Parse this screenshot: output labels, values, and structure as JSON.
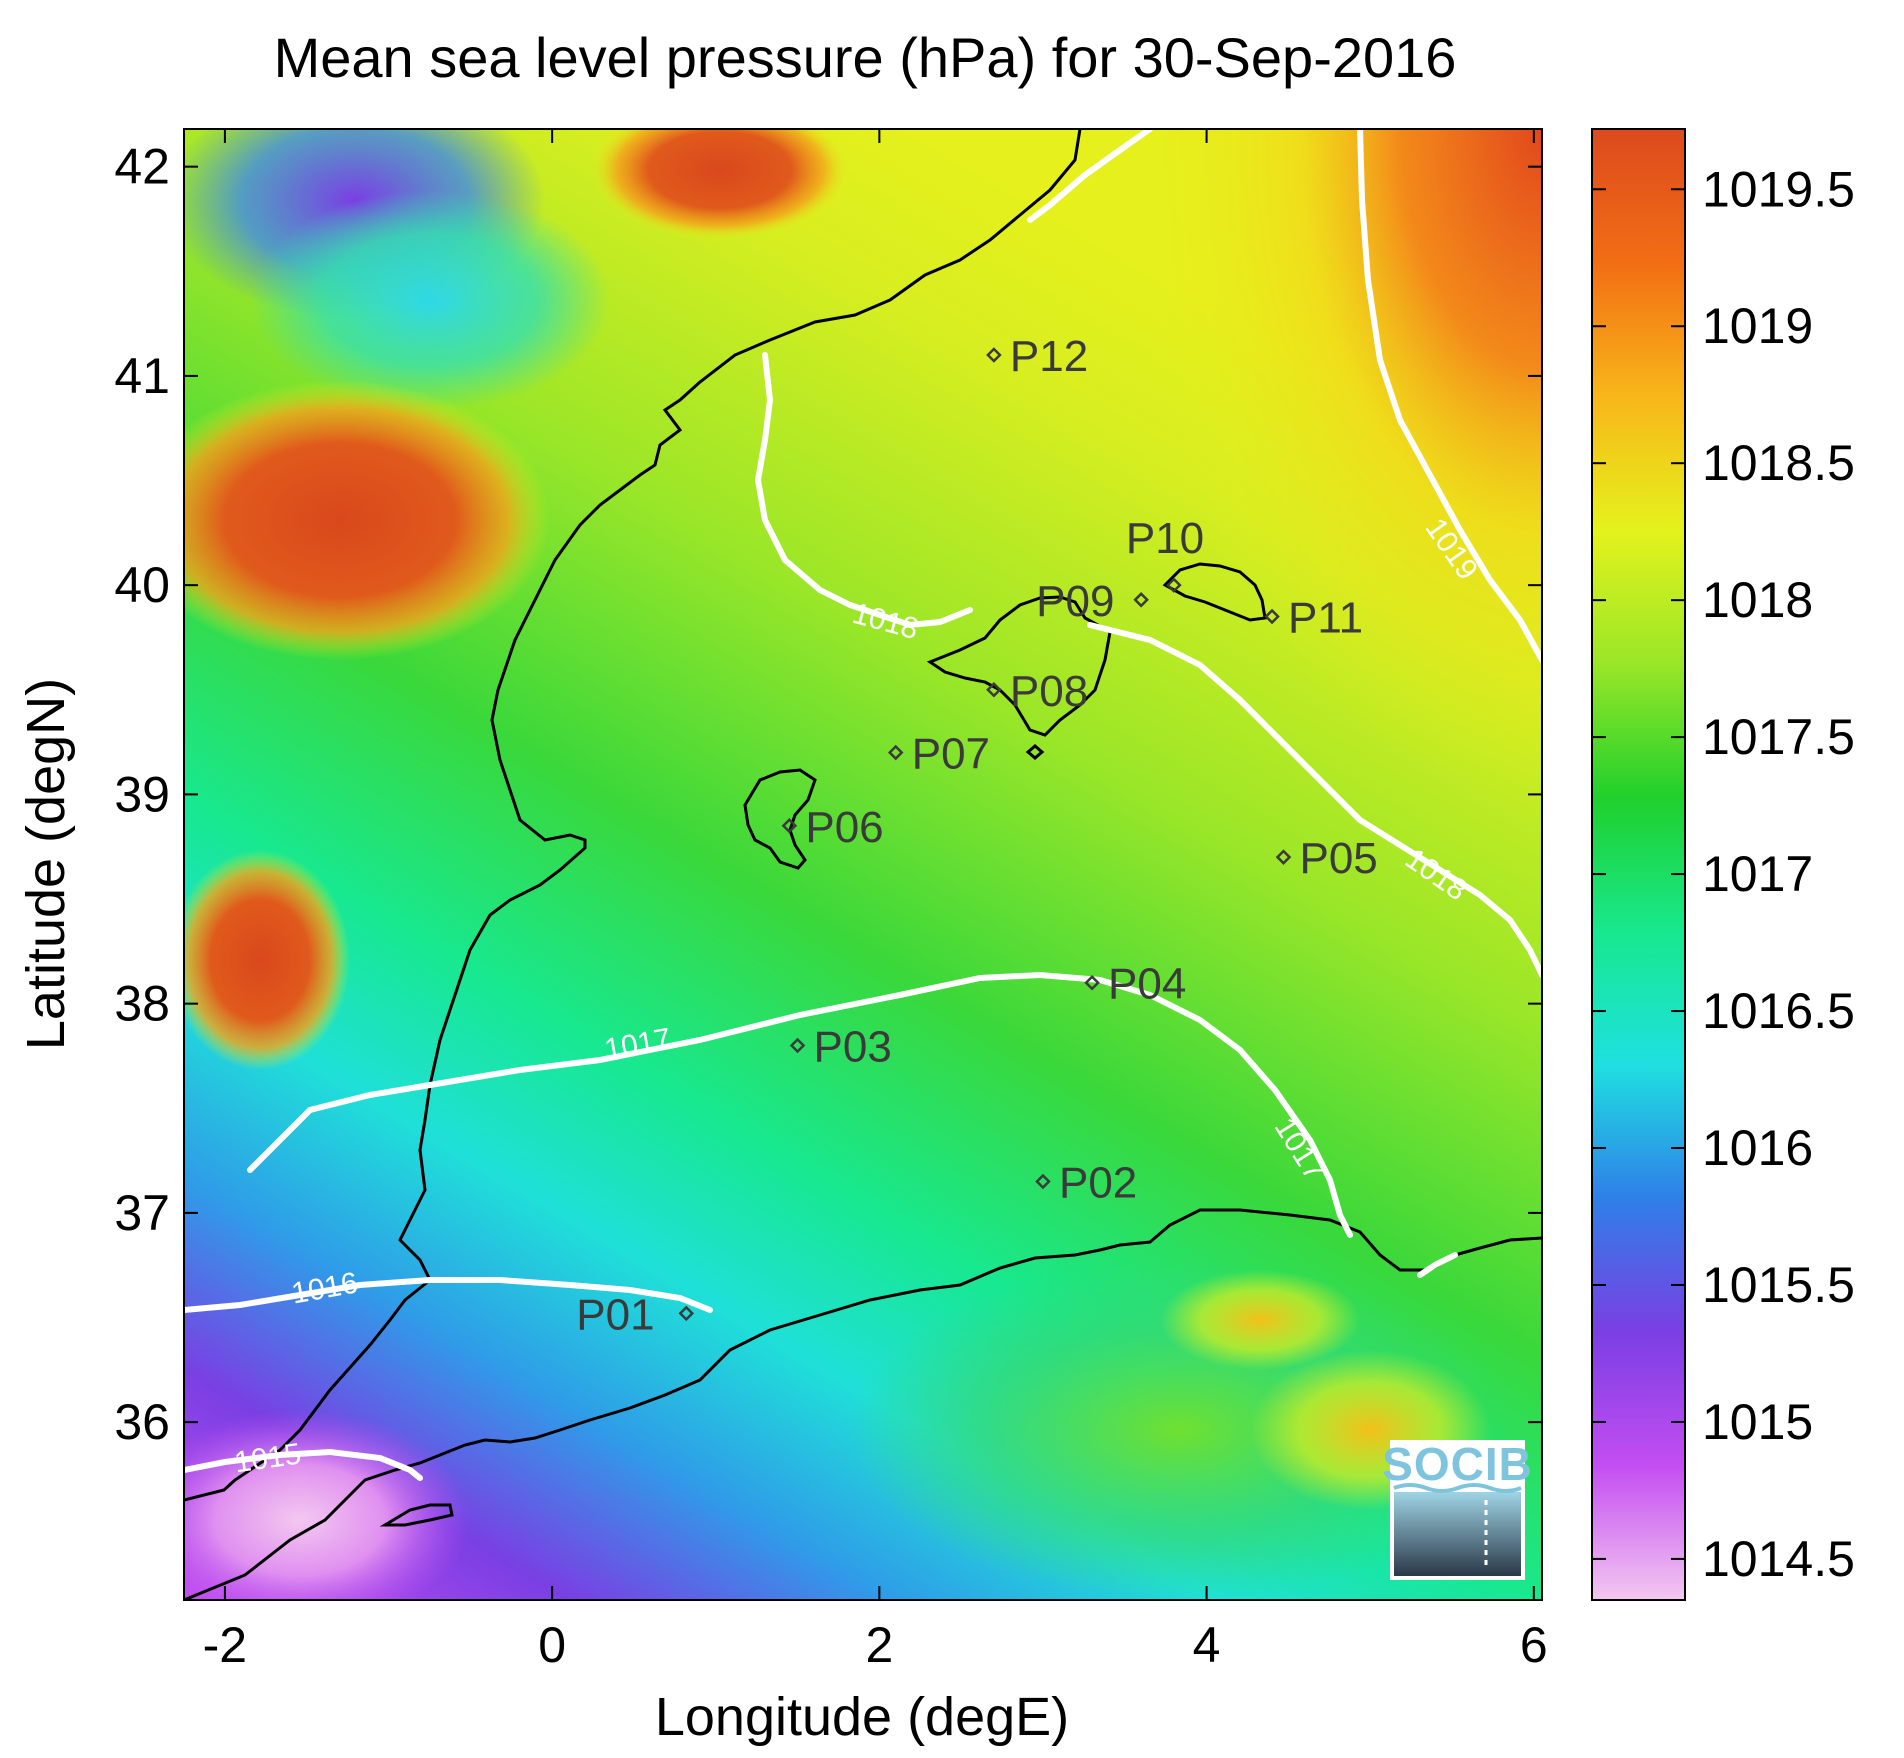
{
  "title": "Mean sea level pressure (hPa) for 30-Sep-2016",
  "x_axis": {
    "label": "Longitude (degE)",
    "range": [
      -2.25,
      6.05
    ],
    "ticks": [
      {
        "value": -2,
        "label": "-2"
      },
      {
        "value": 0,
        "label": "0"
      },
      {
        "value": 2,
        "label": "2"
      },
      {
        "value": 4,
        "label": "4"
      },
      {
        "value": 6,
        "label": "6"
      }
    ]
  },
  "y_axis": {
    "label": "Latitude (degN)",
    "range": [
      35.15,
      42.18
    ],
    "ticks": [
      {
        "value": 36,
        "label": "36"
      },
      {
        "value": 37,
        "label": "37"
      },
      {
        "value": 38,
        "label": "38"
      },
      {
        "value": 39,
        "label": "39"
      },
      {
        "value": 40,
        "label": "40"
      },
      {
        "value": 41,
        "label": "41"
      },
      {
        "value": 42,
        "label": "42"
      }
    ]
  },
  "colorbar": {
    "range": [
      1014.35,
      1019.72
    ],
    "colormap": [
      "#f3c8f0",
      "#c44ef2",
      "#7a3fe3",
      "#2f7fe8",
      "#1fe0e0",
      "#18e88e",
      "#20d02c",
      "#9ae628",
      "#e4f21c",
      "#f8b61a",
      "#f26e14",
      "#dc4a1e"
    ],
    "ticks": [
      {
        "value": 1014.5,
        "label": "1014.5"
      },
      {
        "value": 1015,
        "label": "1015"
      },
      {
        "value": 1015.5,
        "label": "1015.5"
      },
      {
        "value": 1016,
        "label": "1016"
      },
      {
        "value": 1016.5,
        "label": "1016.5"
      },
      {
        "value": 1017,
        "label": "1017"
      },
      {
        "value": 1017.5,
        "label": "1017.5"
      },
      {
        "value": 1018,
        "label": "1018"
      },
      {
        "value": 1018.5,
        "label": "1018.5"
      },
      {
        "value": 1019,
        "label": "1019"
      },
      {
        "value": 1019.5,
        "label": "1019.5"
      }
    ]
  },
  "contours": [
    {
      "level": 1015,
      "label": "1015"
    },
    {
      "level": 1016,
      "label": "1016"
    },
    {
      "level": 1017,
      "label": "1017"
    },
    {
      "level": 1018,
      "label": "1018"
    },
    {
      "level": 1019,
      "label": "1019"
    }
  ],
  "stations": [
    {
      "name": "P01",
      "lon": 0.82,
      "lat": 36.52
    },
    {
      "name": "P02",
      "lon": 3.0,
      "lat": 37.15
    },
    {
      "name": "P03",
      "lon": 1.5,
      "lat": 37.8
    },
    {
      "name": "P04",
      "lon": 3.3,
      "lat": 38.1
    },
    {
      "name": "P05",
      "lon": 4.47,
      "lat": 38.7
    },
    {
      "name": "P06",
      "lon": 1.45,
      "lat": 38.85
    },
    {
      "name": "P07",
      "lon": 2.1,
      "lat": 39.2
    },
    {
      "name": "P08",
      "lon": 2.7,
      "lat": 39.5
    },
    {
      "name": "P09",
      "lon": 3.6,
      "lat": 39.93
    },
    {
      "name": "P10",
      "lon": 3.8,
      "lat": 40.0
    },
    {
      "name": "P11",
      "lon": 4.4,
      "lat": 39.85
    },
    {
      "name": "P12",
      "lon": 2.7,
      "lat": 41.1
    }
  ],
  "logo": {
    "text": "SOCIB"
  }
}
